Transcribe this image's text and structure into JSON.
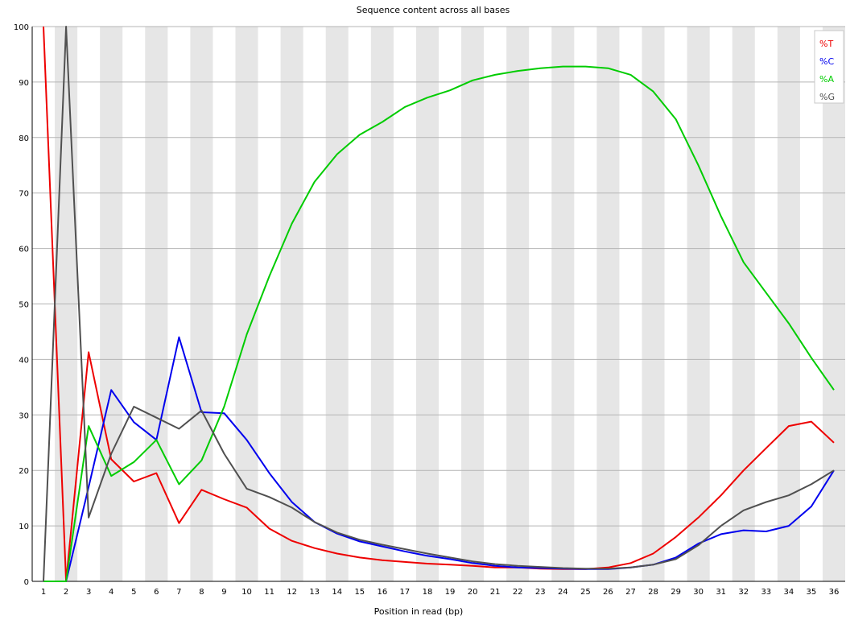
{
  "chart_data": {
    "type": "line",
    "title": "Sequence content across all bases",
    "xlabel": "Position in read (bp)",
    "ylabel": "",
    "ylim": [
      0,
      100
    ],
    "yticks": [
      0,
      10,
      20,
      30,
      40,
      50,
      60,
      70,
      80,
      90,
      100
    ],
    "x": [
      1,
      2,
      3,
      4,
      5,
      6,
      7,
      8,
      9,
      10,
      11,
      12,
      13,
      14,
      15,
      16,
      17,
      18,
      19,
      20,
      21,
      22,
      23,
      24,
      25,
      26,
      27,
      28,
      29,
      30,
      31,
      32,
      33,
      34,
      35,
      36
    ],
    "grid": "horizontal",
    "legend_position": "top-right",
    "series": [
      {
        "name": "%T",
        "color": "#ee0000",
        "values": [
          100,
          0,
          41.3,
          22,
          18,
          19.5,
          10.5,
          16.5,
          14.8,
          13.3,
          9.5,
          7.3,
          6,
          5,
          4.3,
          3.8,
          3.5,
          3.2,
          3,
          2.8,
          2.5,
          2.5,
          2.3,
          2.2,
          2.2,
          2.5,
          3.3,
          5,
          8,
          11.5,
          15.5,
          20,
          24,
          28,
          28.8,
          25
        ]
      },
      {
        "name": "%C",
        "color": "#0000ee",
        "values": [
          0,
          0,
          17,
          34.5,
          28.7,
          25.5,
          44,
          30.5,
          30.3,
          25.5,
          19.5,
          14.3,
          10.7,
          8.6,
          7.2,
          6.3,
          5.4,
          4.6,
          4,
          3.3,
          2.8,
          2.5,
          2.4,
          2.3,
          2.2,
          2.2,
          2.5,
          3,
          4.3,
          6.8,
          8.5,
          9.2,
          9,
          10,
          13.5,
          20
        ]
      },
      {
        "name": "%A",
        "color": "#00cc00",
        "values": [
          0,
          0,
          28,
          19,
          21.5,
          25.5,
          17.5,
          21.8,
          31.5,
          44.5,
          55,
          64.5,
          72,
          77,
          80.5,
          82.8,
          85.5,
          87.2,
          88.5,
          90.3,
          91.3,
          92,
          92.5,
          92.8,
          92.8,
          92.5,
          91.3,
          88.3,
          83.3,
          75,
          65.8,
          57.5,
          52,
          46.5,
          40.3,
          34.5
        ]
      },
      {
        "name": "%G",
        "color": "#505050",
        "values": [
          0,
          100,
          11.5,
          23,
          31.5,
          29.5,
          27.5,
          30.8,
          23,
          16.7,
          15.2,
          13.3,
          10.7,
          8.8,
          7.5,
          6.6,
          5.8,
          5,
          4.3,
          3.6,
          3.1,
          2.8,
          2.6,
          2.4,
          2.3,
          2.3,
          2.5,
          3,
          4,
          6.5,
          10,
          12.8,
          14.3,
          15.5,
          17.5,
          20
        ]
      }
    ]
  }
}
